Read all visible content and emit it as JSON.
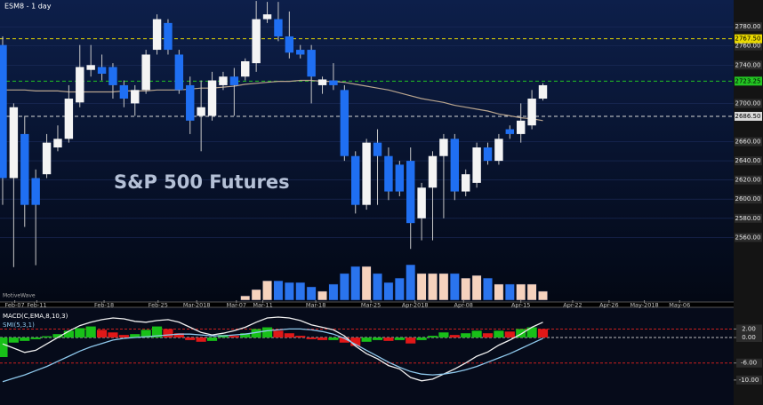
{
  "chart_data": [
    {
      "type": "candlestick",
      "title": "ESM8 - 1 day",
      "annotation": "S&P 500 Futures",
      "watermark": "MotiveWave",
      "up_color": "#f4f4f4",
      "down_color": "#1f6ff2",
      "open": [
        2761,
        2622,
        2668,
        2622,
        2626,
        2654,
        2663,
        2701,
        2735,
        2738,
        2738,
        2719,
        2700,
        2714,
        2756,
        2784,
        2751,
        2719,
        2687,
        2687,
        2719,
        2728,
        2728,
        2742,
        2788,
        2788,
        2770,
        2756,
        2756,
        2719,
        2724,
        2714,
        2645,
        2594,
        2659,
        2645,
        2636,
        2640,
        2580,
        2612,
        2645,
        2663,
        2608,
        2617,
        2654,
        2640,
        2673,
        2668,
        2677,
        2705
      ],
      "high": [
        2770,
        2700,
        2687,
        2631,
        2668,
        2677,
        2719,
        2761,
        2761,
        2751,
        2742,
        2724,
        2719,
        2756,
        2793,
        2788,
        2756,
        2728,
        2724,
        2733,
        2733,
        2737,
        2747,
        2807,
        2806,
        2806,
        2796,
        2761,
        2761,
        2728,
        2742,
        2719,
        2650,
        2663,
        2673,
        2654,
        2640,
        2654,
        2617,
        2650,
        2668,
        2668,
        2631,
        2659,
        2659,
        2668,
        2677,
        2700,
        2714,
        2721
      ],
      "low": [
        2594,
        2529,
        2571,
        2531,
        2622,
        2650,
        2659,
        2696,
        2728,
        2724,
        2705,
        2696,
        2687,
        2710,
        2751,
        2751,
        2710,
        2668,
        2650,
        2682,
        2714,
        2687,
        2724,
        2733,
        2784,
        2765,
        2747,
        2747,
        2700,
        2710,
        2714,
        2640,
        2585,
        2589,
        2594,
        2599,
        2603,
        2548,
        2557,
        2557,
        2580,
        2599,
        2603,
        2612,
        2636,
        2636,
        2663,
        2659,
        2673,
        2703
      ],
      "close": [
        2622,
        2696,
        2594,
        2594,
        2659,
        2663,
        2705,
        2738,
        2740,
        2731,
        2719,
        2705,
        2714,
        2751,
        2788,
        2756,
        2714,
        2682,
        2696,
        2724,
        2728,
        2719,
        2744,
        2788,
        2793,
        2770,
        2753,
        2751,
        2728,
        2725,
        2719,
        2645,
        2594,
        2659,
        2645,
        2608,
        2608,
        2575,
        2612,
        2645,
        2663,
        2608,
        2626,
        2654,
        2640,
        2663,
        2668,
        2682,
        2705,
        2719
      ],
      "ma": {
        "color": "#b9a58e",
        "values": [
          2714,
          2714,
          2714,
          2713,
          2713,
          2713,
          2712,
          2712,
          2712,
          2712,
          2712,
          2713,
          2713,
          2713,
          2714,
          2714,
          2714,
          2715,
          2716,
          2716,
          2717,
          2718,
          2720,
          2721,
          2722,
          2723,
          2723,
          2724,
          2724,
          2723,
          2723,
          2722,
          2720,
          2718,
          2716,
          2714,
          2711,
          2708,
          2705,
          2703,
          2701,
          2698,
          2696,
          2694,
          2692,
          2689,
          2687,
          2685,
          2684,
          2682
        ]
      },
      "volume": {
        "up_color": "#f6d2bd",
        "down_color": "#2a74ee",
        "vlim": [
          0,
          2000000
        ],
        "values": [
          null,
          null,
          null,
          null,
          null,
          null,
          null,
          null,
          null,
          null,
          null,
          null,
          null,
          null,
          null,
          null,
          null,
          null,
          null,
          null,
          null,
          null,
          230000,
          560000,
          1020000,
          1020000,
          930000,
          930000,
          700000,
          470000,
          840000,
          1400000,
          1770000,
          1770000,
          1400000,
          930000,
          1160000,
          1860000,
          1400000,
          1400000,
          1400000,
          1400000,
          1160000,
          1300000,
          1160000,
          840000,
          840000,
          840000,
          840000,
          470000
        ]
      },
      "xlim": [
        -0.24,
        66.3
      ],
      "xticks": [
        {
          "value": 1.1,
          "label": "Feb-07"
        },
        {
          "value": 3.1,
          "label": "Feb-11"
        },
        {
          "value": 9.2,
          "label": "Feb-18"
        },
        {
          "value": 14.1,
          "label": "Feb-25"
        },
        {
          "value": 17.6,
          "label": "Mar-2018"
        },
        {
          "value": 21.2,
          "label": "Mar-07"
        },
        {
          "value": 23.6,
          "label": "Mar-11"
        },
        {
          "value": 28.4,
          "label": "Mar-18"
        },
        {
          "value": 33.4,
          "label": "Mar-25"
        },
        {
          "value": 37.4,
          "label": "Apr-2018"
        },
        {
          "value": 41.8,
          "label": "Apr-08"
        },
        {
          "value": 47,
          "label": "Apr-15"
        },
        {
          "value": 51.7,
          "label": "Apr-22"
        },
        {
          "value": 55,
          "label": "Apr-26"
        },
        {
          "value": 58.2,
          "label": "May-2018"
        },
        {
          "value": 61.4,
          "label": "May-06"
        }
      ],
      "ylim": [
        2513,
        2808
      ],
      "yticks": [
        {
          "value": 2780,
          "label": "2780.00"
        },
        {
          "value": 2760,
          "label": "2760.00"
        },
        {
          "value": 2740,
          "label": "2740.00"
        },
        {
          "value": 2700,
          "label": "2700.00"
        },
        {
          "value": 2660,
          "label": "2660.00"
        },
        {
          "value": 2640,
          "label": "2640.00"
        },
        {
          "value": 2620,
          "label": "2620.00"
        },
        {
          "value": 2600,
          "label": "2600.00"
        },
        {
          "value": 2580,
          "label": "2580.00"
        },
        {
          "value": 2560,
          "label": "2560.00"
        }
      ],
      "levels": [
        {
          "value": 2767.5,
          "label": "2767.50",
          "color": "#e8d800"
        },
        {
          "value": 2723.25,
          "label": "2723.25",
          "color": "#22c422"
        },
        {
          "value": 2686.5,
          "label": "2686.50",
          "color": "#d8d8d8"
        }
      ],
      "grid": true
    },
    {
      "type": "macd",
      "title": "MACD(C,EMA,8,10,3)",
      "subtitle": "SMI(5,3,1)",
      "up_color": "#18c018",
      "down_color": "#e01818",
      "histogram": [
        -4.6,
        -1.2,
        -0.8,
        -0.4,
        0.3,
        0.8,
        1.6,
        2.2,
        2.6,
        1.8,
        1.2,
        0.6,
        0.8,
        1.8,
        2.6,
        2.0,
        1.0,
        -0.6,
        -1.0,
        -0.8,
        0.6,
        0.4,
        1.0,
        2.0,
        2.4,
        1.6,
        1.0,
        0.4,
        -0.4,
        -0.6,
        -0.6,
        -1.2,
        -2.0,
        -1.0,
        -0.6,
        -0.8,
        -0.6,
        -1.4,
        -0.6,
        0.4,
        1.2,
        0.6,
        1.0,
        1.6,
        1.0,
        1.6,
        1.4,
        2.0,
        2.4,
        2.0
      ],
      "series": [
        {
          "color": "#f0f0f0",
          "values": [
            -1.5,
            -2.5,
            -3.5,
            -3.0,
            -1.5,
            0,
            1.5,
            2.8,
            3.6,
            4.2,
            4.6,
            4.4,
            3.8,
            3.6,
            4.0,
            4.2,
            3.6,
            2.4,
            1.2,
            0.6,
            1.0,
            1.6,
            2.4,
            3.6,
            4.6,
            4.8,
            4.6,
            4.0,
            3.0,
            2.4,
            1.8,
            0.4,
            -2.0,
            -3.8,
            -5.0,
            -6.6,
            -7.4,
            -9.4,
            -10.2,
            -9.8,
            -8.6,
            -7.4,
            -6.0,
            -4.4,
            -3.4,
            -1.8,
            -0.6,
            0.8,
            2.4,
            3.6
          ]
        },
        {
          "color": "#8ec8ec",
          "values": [
            -10.4,
            -9.6,
            -8.8,
            -7.8,
            -6.8,
            -5.6,
            -4.4,
            -3.2,
            -2.2,
            -1.4,
            -0.6,
            -0.2,
            0,
            0.2,
            0.4,
            0.6,
            0.8,
            0.8,
            0.6,
            0.4,
            0.4,
            0.6,
            0.8,
            1.2,
            1.6,
            1.8,
            2.0,
            2.0,
            1.8,
            1.4,
            0.8,
            -0.2,
            -1.6,
            -3.0,
            -4.4,
            -5.8,
            -7.0,
            -8.0,
            -8.6,
            -8.8,
            -8.6,
            -8.2,
            -7.6,
            -6.8,
            -5.8,
            -4.8,
            -3.8,
            -2.6,
            -1.4,
            -0.2
          ]
        }
      ],
      "ylim": [
        -14,
        6.9
      ],
      "yticks": [
        {
          "value": 2,
          "label": "2.00"
        },
        {
          "value": 0,
          "label": "0.00"
        },
        {
          "value": -6,
          "label": "-6.00"
        },
        {
          "value": -10,
          "label": "-10.00"
        }
      ],
      "levels": [
        {
          "value": 2,
          "color": "#c81e1e"
        },
        {
          "value": 0,
          "color": "#bdbdbd"
        },
        {
          "value": -6,
          "color": "#c81e1e"
        }
      ]
    }
  ]
}
